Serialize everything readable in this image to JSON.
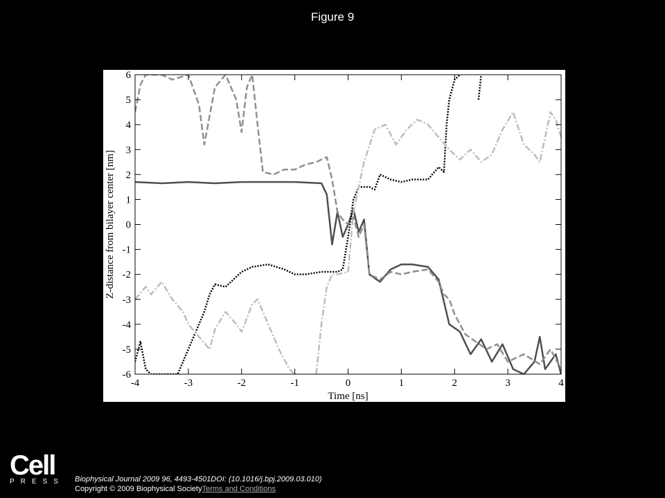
{
  "title": "Figure 9",
  "chart_data": {
    "type": "line",
    "xlabel": "Time [ns]",
    "ylabel": "Z-distance from bilayer center [nm]",
    "xlim": [
      -4,
      4
    ],
    "xticks": [
      -4,
      -3,
      -2,
      -1,
      0,
      1,
      2,
      3,
      4
    ],
    "ylim": [
      -6,
      6
    ],
    "yticks": [
      -6,
      -5,
      -4,
      -3,
      -2,
      -1,
      0,
      1,
      2,
      3,
      4,
      5,
      6
    ],
    "series": [
      {
        "color": "#4f4f4f",
        "dash": "solid",
        "x": [
          -4,
          -3.5,
          -3,
          -2.5,
          -2,
          -1.5,
          -1,
          -0.5,
          -0.4,
          -0.3,
          -0.2,
          -0.1,
          0,
          0.1,
          0.2,
          0.3,
          0.4,
          0.6,
          0.8,
          1,
          1.2,
          1.5,
          1.7,
          1.9,
          2.1,
          2.3,
          2.5,
          2.7,
          2.9,
          3.1,
          3.3,
          3.5,
          3.6,
          3.7,
          3.9,
          4
        ],
        "values": [
          1.7,
          1.65,
          1.7,
          1.65,
          1.7,
          1.7,
          1.7,
          1.65,
          1.2,
          -0.8,
          0.5,
          -0.5,
          0,
          0.6,
          -0.3,
          0.2,
          -2.0,
          -2.3,
          -1.8,
          -1.6,
          -1.6,
          -1.7,
          -2.2,
          -4.0,
          -4.3,
          -5.2,
          -4.6,
          -5.5,
          -4.8,
          -5.8,
          -6,
          -5.5,
          -4.5,
          -5.8,
          -5.2,
          -6
        ]
      },
      {
        "color": "#8f8f8f",
        "dash": "dashed",
        "x": [
          -4,
          -3.9,
          -3.8,
          -3.5,
          -3.3,
          -3,
          -2.8,
          -2.7,
          -2.5,
          -2.3,
          -2.1,
          -2,
          -1.9,
          -1.8,
          -1.7,
          -1.6,
          -1.4,
          -1.2,
          -1,
          -0.8,
          -0.6,
          -0.4,
          -0.3,
          -0.2,
          -0.1,
          0,
          0.1,
          0.2,
          0.3,
          0.4,
          0.6,
          0.8,
          1,
          1.2,
          1.5,
          1.7,
          1.8,
          1.9,
          2.0,
          2.2,
          2.4,
          2.6,
          2.8,
          3,
          3.3,
          3.6,
          3.8,
          4
        ],
        "values": [
          4.5,
          5.6,
          6,
          6,
          5.8,
          6,
          4.8,
          3.2,
          5.5,
          6,
          5,
          3.7,
          5.5,
          6,
          4,
          2.1,
          2.0,
          2.2,
          2.2,
          2.4,
          2.5,
          2.7,
          1.8,
          0.5,
          0.2,
          0,
          0.3,
          -0.5,
          0,
          -2.0,
          -2.2,
          -1.9,
          -2.0,
          -1.9,
          -1.8,
          -2.3,
          -2.8,
          -3.0,
          -3.6,
          -4.4,
          -4.7,
          -5.0,
          -4.8,
          -5.5,
          -5.2,
          -5.6,
          -5.0,
          -5.8
        ]
      },
      {
        "color": "#000000",
        "dash": "dotted",
        "x": [
          -4,
          -3.9,
          -3.8,
          -3.7,
          -3.5,
          -3.2,
          -3.0,
          -2.9,
          -2.8,
          -2.7,
          -2.6,
          -2.5,
          -2.3,
          -2.0,
          -1.8,
          -1.5,
          -1.2,
          -1.0,
          -0.8,
          -0.5,
          -0.2,
          -0.1,
          0,
          0.1,
          0.2,
          0.4,
          0.5,
          0.6,
          0.8,
          1.0,
          1.2,
          1.5,
          1.7,
          1.8,
          1.85,
          1.9,
          2.0,
          2.1,
          2.3,
          2.45,
          2.5
        ],
        "values": [
          -5.5,
          -4.7,
          -5.8,
          -6,
          -6,
          -6,
          -5,
          -4.5,
          -4.0,
          -3.5,
          -2.8,
          -2.4,
          -2.5,
          -1.9,
          -1.7,
          -1.6,
          -1.8,
          -2.0,
          -2.0,
          -1.9,
          -1.9,
          -1.8,
          -0.5,
          1.0,
          1.5,
          1.5,
          1.4,
          2.0,
          1.8,
          1.7,
          1.8,
          1.8,
          2.3,
          2.1,
          4.0,
          5.0,
          5.8,
          6,
          null,
          5.0,
          6
        ]
      },
      {
        "color": "#bdbdbd",
        "dash": "dashdot",
        "x": [
          -4,
          -3.8,
          -3.7,
          -3.5,
          -3.3,
          -3.1,
          -3,
          -2.8,
          -2.6,
          -2.5,
          -2.3,
          -2.1,
          -2,
          -1.8,
          -1.7,
          -1.5,
          -1.3,
          -1.1,
          -1.0,
          -0.9,
          -0.6,
          -0.5,
          -0.4,
          -0.3,
          -0.2,
          0,
          0.1,
          0.2,
          0.3,
          0.5,
          0.7,
          0.9,
          1.1,
          1.3,
          1.5,
          1.7,
          1.9,
          2.1,
          2.3,
          2.5,
          2.7,
          2.9,
          3.1,
          3.3,
          3.5,
          3.6,
          3.7,
          3.8,
          3.9,
          4
        ],
        "values": [
          -3,
          -2.5,
          -2.8,
          -2.3,
          -3,
          -3.5,
          -4,
          -4.5,
          -5,
          -4.2,
          -3.5,
          -4,
          -4.3,
          -3.2,
          -3,
          -4,
          -5,
          -5.8,
          -6,
          null,
          -6,
          -4,
          -2.5,
          -2,
          -2,
          -1.9,
          0.5,
          1.5,
          2.5,
          3.8,
          4,
          3.2,
          3.8,
          4.2,
          4.0,
          3.5,
          3.0,
          2.6,
          3.0,
          2.5,
          2.8,
          3.8,
          4.5,
          3.2,
          2.8,
          2.5,
          3.5,
          4.5,
          4.2,
          3.5
        ]
      }
    ]
  },
  "logo": {
    "name": "Cell",
    "press": "PRESS"
  },
  "footer": {
    "citation": "Biophysical Journal 2009 96, 4493-4501DOI: (10.1016/j.bpj.2009.03.010)",
    "copyright": "Copyright © 2009 Biophysical Society",
    "link": "Terms and Conditions"
  }
}
